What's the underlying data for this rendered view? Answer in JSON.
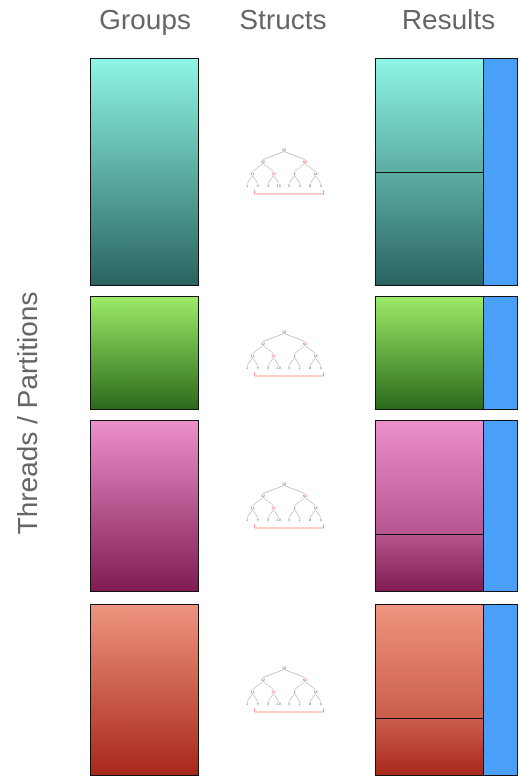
{
  "headers": {
    "groups": "Groups",
    "structs": "Structs",
    "results": "Results"
  },
  "axis_label": "Threads / Partitions",
  "partitions": [
    {
      "color_top": "#8ef6e4",
      "color_bottom": "#2a6460",
      "result_splits": 2
    },
    {
      "color_top": "#9ceb66",
      "color_bottom": "#2d6a1c",
      "result_splits": 1
    },
    {
      "color_top": "#ec90cc",
      "color_bottom": "#801c52",
      "result_splits": 2
    },
    {
      "color_top": "#ee9480",
      "color_bottom": "#a8281a",
      "result_splits": 2
    }
  ],
  "result_bar_color": "#4a9ff8",
  "tree_edge_color": "#777777",
  "tree_highlight_color": "#ee3a2a",
  "tree": {
    "root": "10",
    "level1": [
      "32",
      "62"
    ],
    "level2": [
      "11",
      "20",
      "3",
      "14"
    ],
    "leaves": [
      "1",
      "9",
      "3",
      "10",
      "5",
      "2",
      "8",
      "4"
    ]
  }
}
